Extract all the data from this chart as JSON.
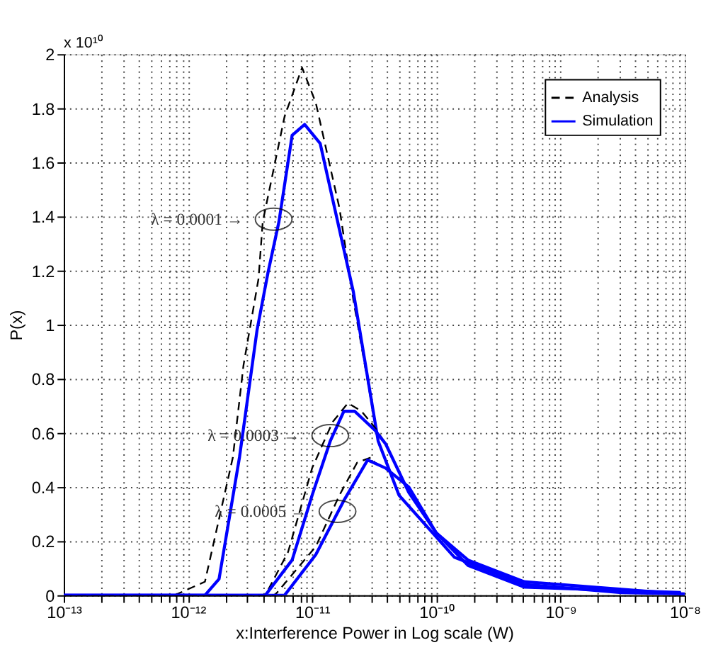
{
  "chart_data": {
    "type": "line",
    "xlabel": "x:Interference Power in Log scale (W)",
    "ylabel": "P(x)",
    "log": "x",
    "grid": true,
    "legend": "top right",
    "xlim": [
      1e-13,
      1e-08
    ],
    "ylim": [
      0,
      2
    ],
    "xticks": [
      {
        "value": 1e-13,
        "label": "10⁻¹³"
      },
      {
        "value": 2e-13,
        "label": null
      },
      {
        "value": 3e-13,
        "label": null
      },
      {
        "value": 4e-13,
        "label": null
      },
      {
        "value": 5e-13,
        "label": null
      },
      {
        "value": 6e-13,
        "label": null
      },
      {
        "value": 7e-13,
        "label": null
      },
      {
        "value": 8e-13,
        "label": null
      },
      {
        "value": 9e-13,
        "label": null
      },
      {
        "value": 1e-12,
        "label": "10⁻¹²"
      },
      {
        "value": 2e-12,
        "label": null
      },
      {
        "value": 3e-12,
        "label": null
      },
      {
        "value": 4e-12,
        "label": null
      },
      {
        "value": 5e-12,
        "label": null
      },
      {
        "value": 6e-12,
        "label": null
      },
      {
        "value": 7e-12,
        "label": null
      },
      {
        "value": 8e-12,
        "label": null
      },
      {
        "value": 9e-12,
        "label": null
      },
      {
        "value": 1e-11,
        "label": "10⁻¹¹"
      },
      {
        "value": 2e-11,
        "label": null
      },
      {
        "value": 3e-11,
        "label": null
      },
      {
        "value": 4e-11,
        "label": null
      },
      {
        "value": 5e-11,
        "label": null
      },
      {
        "value": 6e-11,
        "label": null
      },
      {
        "value": 7e-11,
        "label": null
      },
      {
        "value": 8e-11,
        "label": null
      },
      {
        "value": 9e-11,
        "label": null
      },
      {
        "value": 1e-10,
        "label": "10⁻¹⁰"
      },
      {
        "value": 2e-10,
        "label": null
      },
      {
        "value": 3e-10,
        "label": null
      },
      {
        "value": 4e-10,
        "label": null
      },
      {
        "value": 5e-10,
        "label": null
      },
      {
        "value": 6e-10,
        "label": null
      },
      {
        "value": 7e-10,
        "label": null
      },
      {
        "value": 8e-10,
        "label": null
      },
      {
        "value": 9e-10,
        "label": null
      },
      {
        "value": 1e-09,
        "label": "10⁻⁹"
      },
      {
        "value": 2e-09,
        "label": null
      },
      {
        "value": 3e-09,
        "label": null
      },
      {
        "value": 4e-09,
        "label": null
      },
      {
        "value": 5e-09,
        "label": null
      },
      {
        "value": 6e-09,
        "label": null
      },
      {
        "value": 7e-09,
        "label": null
      },
      {
        "value": 8e-09,
        "label": null
      },
      {
        "value": 9e-09,
        "label": null
      },
      {
        "value": 1e-08,
        "label": "10⁻⁸"
      }
    ],
    "yticks": [
      0,
      0.2,
      0.4,
      0.6,
      0.8,
      1,
      1.2,
      1.4,
      1.6,
      1.8,
      2
    ],
    "series": [
      {
        "name": "Analysis",
        "color": "#000000",
        "line_style": "dashed",
        "x": [
          1e-13,
          7.8e-13,
          1.37e-12,
          2.3e-12,
          2.8e-12,
          3.7e-12,
          4e-12,
          6e-12,
          8.3e-12,
          1.07e-11,
          1.66e-11,
          2.15e-11,
          3.4e-11,
          5e-11,
          1.4e-10,
          5.1e-10,
          3.1e-09,
          1e-08
        ],
        "values": [
          0,
          0,
          0.05,
          0.51,
          0.85,
          1.17,
          1.38,
          1.77,
          1.95,
          1.82,
          1.43,
          1.09,
          0.57,
          0.37,
          0.14,
          0.04,
          0.01,
          0.005
        ]
      },
      {
        "name": "Simulation",
        "color": "#0000ff",
        "line_style": "solid",
        "x": [
          1e-13,
          1.37e-12,
          1.78e-12,
          2.6e-12,
          3.6e-12,
          4.4e-12,
          5.4e-12,
          6.9e-12,
          8.7e-12,
          1.16e-11,
          2.15e-11,
          3.4e-11,
          5e-11,
          1.4e-10,
          5.1e-10,
          3.1e-09,
          1e-08
        ],
        "values": [
          0,
          0,
          0.06,
          0.51,
          0.98,
          1.19,
          1.38,
          1.7,
          1.74,
          1.67,
          1.12,
          0.57,
          0.37,
          0.14,
          0.04,
          0.01,
          0.005
        ]
      },
      {
        "color": "#000000",
        "line_style": "dashed",
        "x": [
          1e-13,
          4.2e-12,
          6.4e-12,
          1e-11,
          1.46e-11,
          1.94e-11,
          2.5e-11,
          3.2e-11,
          3.9e-11,
          6e-11,
          1e-10,
          1.8e-10,
          5.1e-10,
          9.3e-09
        ],
        "values": [
          0,
          0,
          0.16,
          0.47,
          0.64,
          0.71,
          0.68,
          0.62,
          0.56,
          0.38,
          0.23,
          0.11,
          0.03,
          0.01
        ]
      },
      {
        "color": "#0000ff",
        "line_style": "solid",
        "x": [
          1e-13,
          4.2e-12,
          6.9e-12,
          1e-11,
          1.4e-11,
          1.8e-11,
          2.2e-11,
          3.2e-11,
          3.9e-11,
          6e-11,
          1e-10,
          1.8e-10,
          5.1e-10,
          9.3e-09
        ],
        "values": [
          0,
          0,
          0.13,
          0.37,
          0.57,
          0.68,
          0.68,
          0.61,
          0.56,
          0.38,
          0.23,
          0.11,
          0.03,
          0.01
        ]
      },
      {
        "color": "#000000",
        "line_style": "dashed",
        "x": [
          1e-13,
          5e-12,
          1.07e-11,
          1.66e-11,
          2.3e-11,
          3e-11,
          3.2e-11,
          3.9e-11,
          6e-11,
          1e-10,
          1.8e-10,
          5.1e-10,
          9.3e-09
        ],
        "values": [
          0,
          0,
          0.18,
          0.37,
          0.49,
          0.51,
          0.49,
          0.47,
          0.4,
          0.23,
          0.13,
          0.05,
          0.005
        ]
      },
      {
        "color": "#0000ff",
        "line_style": "solid",
        "x": [
          1e-13,
          6e-12,
          1.07e-11,
          1.8e-11,
          2.8e-11,
          3.9e-11,
          6e-11,
          1e-10,
          1.8e-10,
          5.1e-10,
          9.3e-09
        ],
        "values": [
          0,
          0,
          0.15,
          0.35,
          0.5,
          0.47,
          0.4,
          0.23,
          0.13,
          0.05,
          0.005
        ]
      }
    ],
    "annotations": [
      "x 10¹⁰",
      {
        "text": "λ = 0.0001 →",
        "x": 4.9e-12,
        "y": 1.39
      },
      {
        "text": "λ = 0.0003 →",
        "x": 1.4e-11,
        "y": 0.59
      },
      {
        "text": "λ = 0.0005 →",
        "x": 1.6e-11,
        "y": 0.31
      }
    ]
  }
}
